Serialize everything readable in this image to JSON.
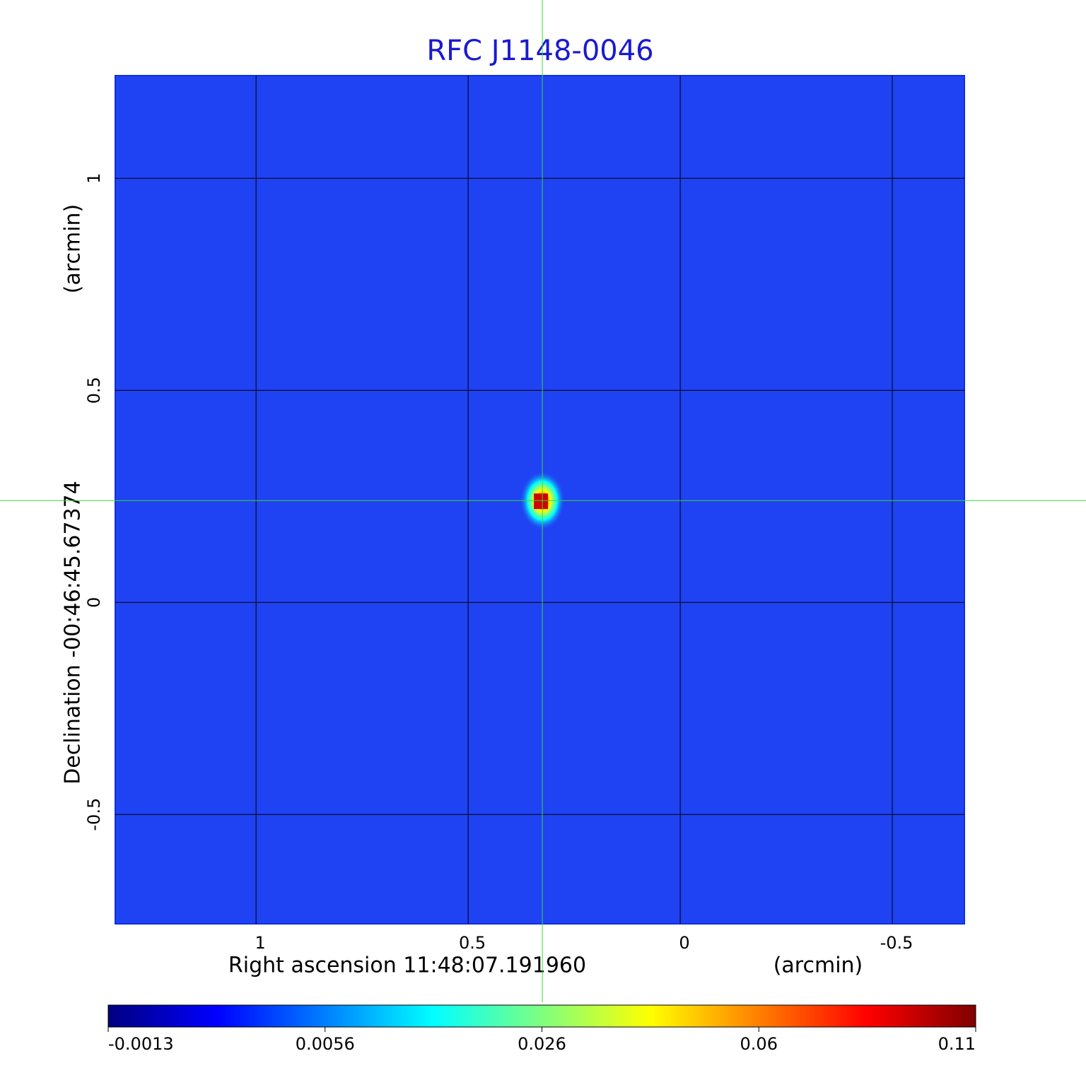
{
  "chart_data": {
    "type": "image",
    "title": "RFC J1148-0046",
    "x_label": "Right ascension  11:48:07.191960",
    "x_unit": "(arcmin)",
    "y_label": "Declination  -00:46:45.67374",
    "y_unit": "(arcmin)",
    "xlim": [
      1.332,
      -0.67
    ],
    "xticks": [
      1.0,
      0.5,
      0.0,
      -0.5
    ],
    "ylim": [
      -0.758,
      1.242
    ],
    "yticks": [
      -0.5,
      0.0,
      0.5,
      1.0
    ],
    "grid": true,
    "background_color": "#1f42f2",
    "peak": {
      "x": 0.325,
      "y": 0.24,
      "value": 0.11
    },
    "colorbar": {
      "ticks": [
        -0.0013,
        0.0056,
        0.026,
        0.06,
        0.11
      ],
      "colors": [
        "#00007f",
        "#0000ff",
        "#007fff",
        "#00ffff",
        "#7fff7f",
        "#ffff00",
        "#ff7f00",
        "#ff0000",
        "#7f0000"
      ]
    }
  }
}
